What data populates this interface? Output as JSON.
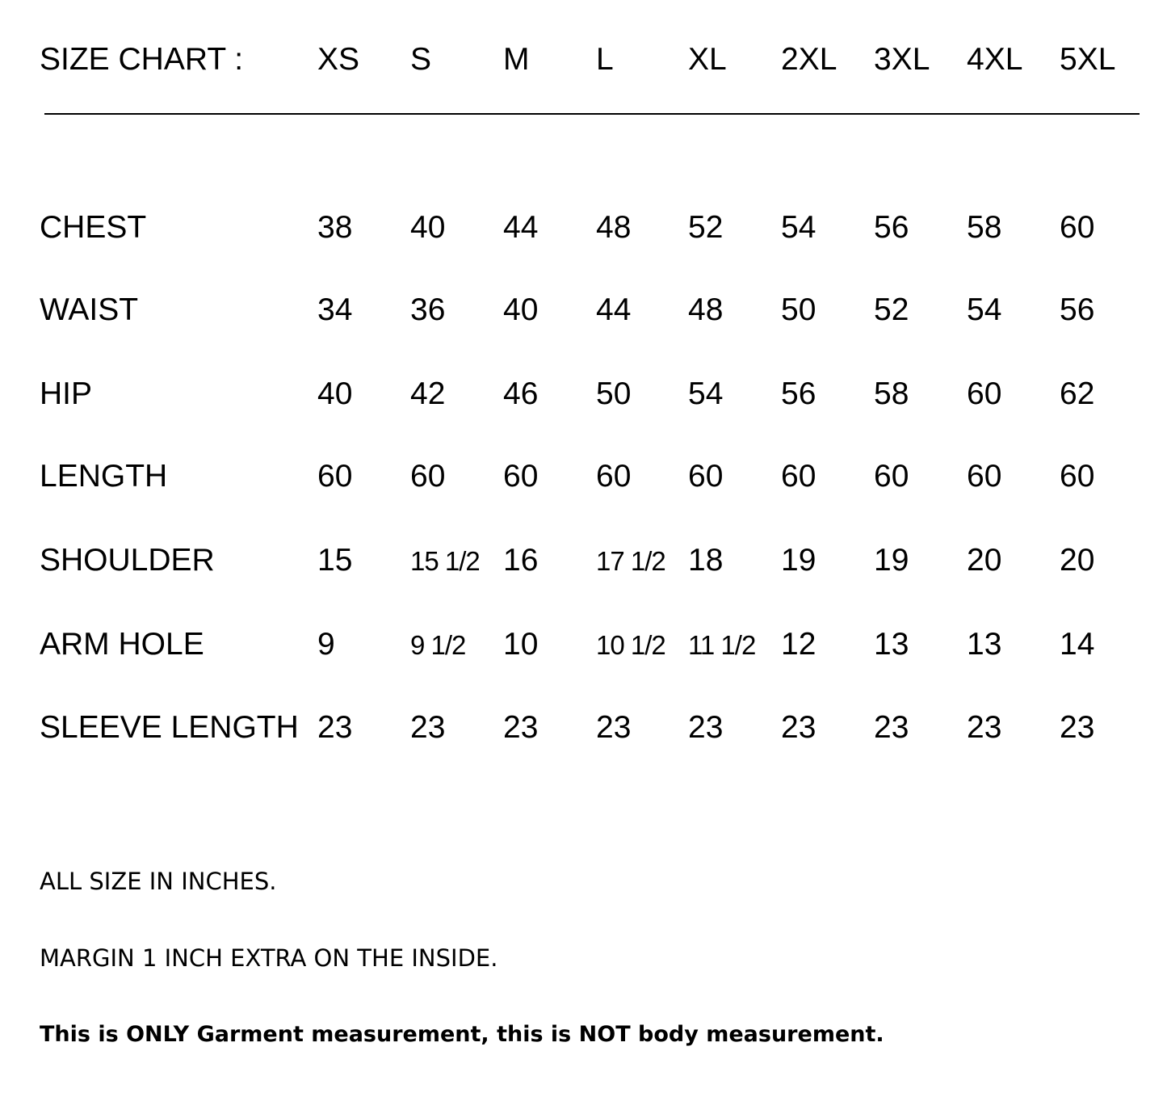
{
  "header": {
    "title": "SIZE CHART :",
    "sizes": [
      "XS",
      "S",
      "M",
      "L",
      "XL",
      "2XL",
      "3XL",
      "4XL",
      "5XL"
    ]
  },
  "rows": [
    {
      "label": "CHEST",
      "values": [
        "38",
        "40",
        "44",
        "48",
        "52",
        "54",
        "56",
        "58",
        "60"
      ]
    },
    {
      "label": "WAIST",
      "values": [
        "34",
        "36",
        "40",
        "44",
        "48",
        "50",
        "52",
        "54",
        "56"
      ]
    },
    {
      "label": "HIP",
      "values": [
        "40",
        "42",
        "46",
        "50",
        "54",
        "56",
        "58",
        "60",
        "62"
      ]
    },
    {
      "label": "LENGTH",
      "values": [
        "60",
        "60",
        "60",
        "60",
        "60",
        "60",
        "60",
        "60",
        "60"
      ]
    },
    {
      "label": "SHOULDER",
      "values": [
        "15",
        "15 1/2",
        "16",
        "17 1/2",
        "18",
        "19",
        "19",
        "20",
        "20"
      ]
    },
    {
      "label": "ARM HOLE",
      "values": [
        "9",
        "9 1/2",
        "10",
        "10 1/2",
        "11 1/2",
        "12",
        "13",
        "13",
        "14"
      ]
    },
    {
      "label": "SLEEVE LENGTH",
      "values": [
        "23",
        "23",
        "23",
        "23",
        "23",
        "23",
        "23",
        "23",
        "23"
      ]
    }
  ],
  "notes": {
    "units": "ALL SIZE IN INCHES.",
    "margin": "MARGIN 1 INCH EXTRA ON THE INSIDE.",
    "disclaimer": "This is ONLY Garment measurement, this is NOT body measurement."
  }
}
